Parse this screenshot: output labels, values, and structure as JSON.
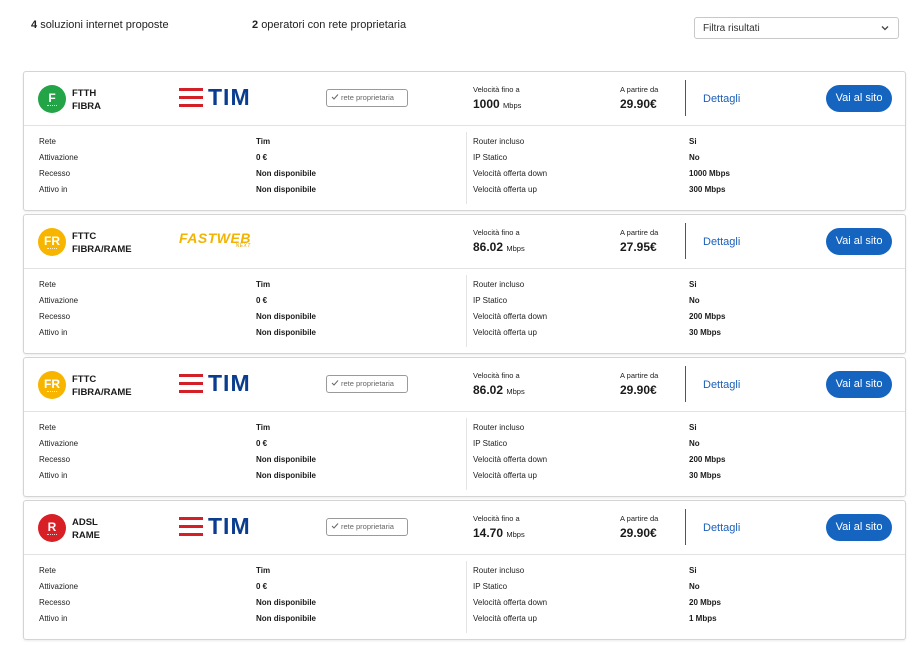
{
  "header": {
    "solutions_count": "4",
    "solutions_text": "soluzioni internet proposte",
    "operators_count": "2",
    "operators_text": "operatori con rete proprietaria",
    "filter_label": "Filtra risultati"
  },
  "labels": {
    "speed_label": "Velocità fino a",
    "price_label": "A partire da",
    "details": "Dettagli",
    "go_site": "Vai al sito",
    "own_network": "rete proprietaria",
    "rete": "Rete",
    "attivazione": "Attivazione",
    "recesso": "Recesso",
    "attivo_in": "Attivo in",
    "router": "Router incluso",
    "ip": "IP Statico",
    "down": "Velocità offerta down",
    "up": "Velocità offerta up"
  },
  "colors": {
    "fibra": "#22a447",
    "fibra_rame": "#f7b500",
    "rame": "#d81f26",
    "accent": "#1565c0"
  },
  "offers": [
    {
      "badge": "F",
      "tech_code": "FTTH",
      "tech_name": "FIBRA",
      "operator": "TIM",
      "own_network": true,
      "speed": "1000",
      "speed_unit": "Mbps",
      "price": "29.90€",
      "rete": "Tim",
      "attivazione": "0 €",
      "recesso": "Non disponibile",
      "attivo_in": "Non disponibile",
      "router": "Si",
      "ip": "No",
      "down": "1000 Mbps",
      "up": "300 Mbps"
    },
    {
      "badge": "FR",
      "tech_code": "FTTC",
      "tech_name": "FIBRA/RAME",
      "operator": "FASTWEB",
      "operator_tag": "NEXT",
      "own_network": false,
      "speed": "86.02",
      "speed_unit": "Mbps",
      "price": "27.95€",
      "rete": "Tim",
      "attivazione": "0 €",
      "recesso": "Non disponibile",
      "attivo_in": "Non disponibile",
      "router": "Si",
      "ip": "No",
      "down": "200 Mbps",
      "up": "30 Mbps"
    },
    {
      "badge": "FR",
      "tech_code": "FTTC",
      "tech_name": "FIBRA/RAME",
      "operator": "TIM",
      "own_network": true,
      "speed": "86.02",
      "speed_unit": "Mbps",
      "price": "29.90€",
      "rete": "Tim",
      "attivazione": "0 €",
      "recesso": "Non disponibile",
      "attivo_in": "Non disponibile",
      "router": "Si",
      "ip": "No",
      "down": "200 Mbps",
      "up": "30 Mbps"
    },
    {
      "badge": "R",
      "tech_code": "ADSL",
      "tech_name": "RAME",
      "operator": "TIM",
      "own_network": true,
      "speed": "14.70",
      "speed_unit": "Mbps",
      "price": "29.90€",
      "rete": "Tim",
      "attivazione": "0 €",
      "recesso": "Non disponibile",
      "attivo_in": "Non disponibile",
      "router": "Si",
      "ip": "No",
      "down": "20 Mbps",
      "up": "1 Mbps"
    }
  ]
}
